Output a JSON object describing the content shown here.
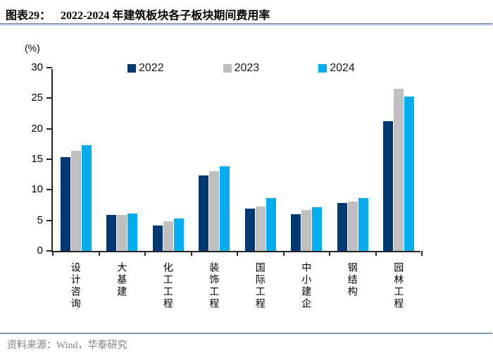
{
  "header": {
    "title_prefix": "图表29：",
    "title_main": "2022-2024 年建筑板块各子板块期间费用率"
  },
  "y_axis": {
    "unit": "(%)",
    "ticks": [
      0,
      5,
      10,
      15,
      20,
      25,
      30
    ]
  },
  "chart_data": {
    "type": "bar",
    "title": "2022-2024 年建筑板块各子板块期间费用率",
    "ylabel": "(%)",
    "ylim": [
      0,
      30
    ],
    "grid": false,
    "legend_position": "top",
    "categories": [
      "设计咨询",
      "大基建",
      "化工工程",
      "装饰工程",
      "国际工程",
      "中小建企",
      "钢结构",
      "园林工程"
    ],
    "series": [
      {
        "name": "2022",
        "color": "#003876",
        "values": [
          15.3,
          5.9,
          4.2,
          12.4,
          6.9,
          6.0,
          7.9,
          21.2
        ]
      },
      {
        "name": "2023",
        "color": "#bfbfbf",
        "values": [
          16.4,
          5.9,
          4.8,
          13.0,
          7.3,
          6.7,
          8.1,
          26.5
        ]
      },
      {
        "name": "2024",
        "color": "#00aeef",
        "values": [
          17.3,
          6.1,
          5.3,
          13.9,
          8.7,
          7.1,
          8.6,
          25.3
        ]
      }
    ]
  },
  "footer": {
    "source": "资料来源：Wind，华泰研究"
  },
  "colors": {
    "series_2022": "#003876",
    "series_2023": "#bfbfbf",
    "series_2024": "#00aeef",
    "axis": "#262626",
    "title_rule": "#5b7fae",
    "footer_rule": "#7f96b2",
    "footer_text": "#7f7f7f"
  }
}
